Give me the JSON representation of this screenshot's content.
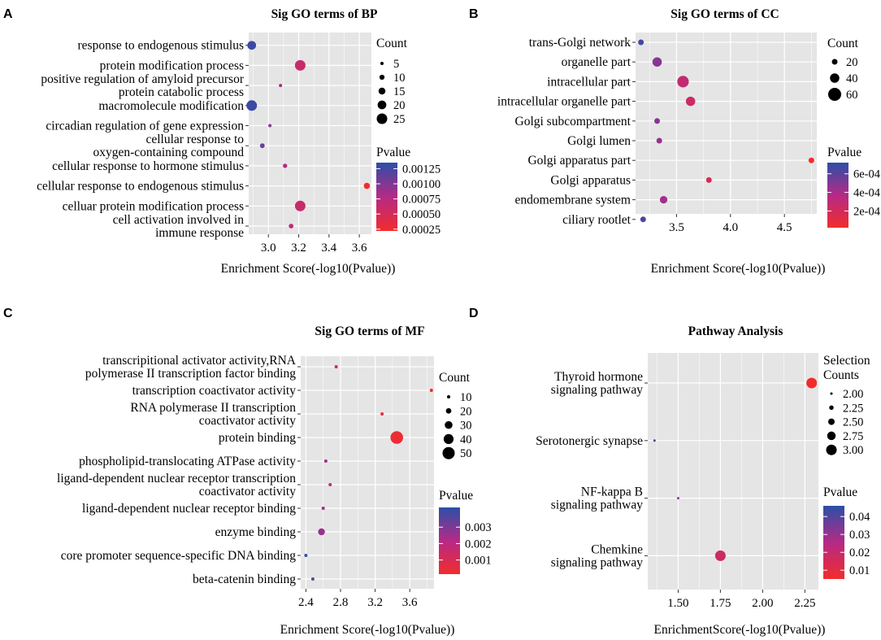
{
  "colors": {
    "panel_bg": "#e5e5e5",
    "grid": "#ffffff",
    "low": "#f22c2c",
    "high": "#2b4fa8",
    "mid": "#b52a86"
  },
  "chart_data": [
    {
      "letter": "A",
      "type": "scatter",
      "title": "Sig GO terms of BP",
      "xlabel": "Enrichment Score(-log10(Pvalue))",
      "xlim": [
        2.87,
        3.68
      ],
      "xticks": [
        3.0,
        3.2,
        3.4,
        3.6
      ],
      "xtick_labels": [
        "3.0",
        "3.2",
        "3.4",
        "3.6"
      ],
      "categories": [
        [
          "response to endogenous stimulus"
        ],
        [
          "protein modification process"
        ],
        [
          "positive regulation of amyloid precursor",
          "protein catabolic process"
        ],
        [
          "macromolecule modification"
        ],
        [
          "circadian regulation of gene expression"
        ],
        [
          "cellular response to",
          "oxygen-containing compound"
        ],
        [
          "cellular response to hormone stimulus"
        ],
        [
          "cellular response to endogenous stimulus"
        ],
        [
          "celluar protein modification process"
        ],
        [
          "cell activation involved in",
          "immune response"
        ]
      ],
      "x": [
        2.89,
        3.21,
        3.08,
        2.89,
        3.01,
        2.96,
        3.11,
        3.65,
        3.21,
        3.15
      ],
      "count": [
        20,
        25,
        1,
        25,
        3,
        9,
        8,
        13,
        25,
        9
      ],
      "pvalue": [
        0.00128,
        0.00062,
        0.00083,
        0.00128,
        0.00098,
        0.0011,
        0.00078,
        0.00022,
        0.00062,
        0.0007
      ],
      "size_legend": {
        "title": "Count",
        "values": [
          5,
          10,
          15,
          20,
          25
        ],
        "labels": [
          "5",
          "10",
          "15",
          "20",
          "25"
        ]
      },
      "color_legend": {
        "title": "Pvalue",
        "range": [
          0.00022,
          0.00135
        ],
        "ticks": [
          0.00125,
          0.001,
          0.00075,
          0.0005,
          0.00025
        ],
        "labels": [
          "0.00125",
          "0.00100",
          "0.00075",
          "0.00050",
          "0.00025"
        ]
      }
    },
    {
      "letter": "B",
      "type": "scatter",
      "title": "Sig GO terms of CC",
      "xlabel": "Enrichment Score(-log10(Pvalue))",
      "xlim": [
        3.12,
        4.8
      ],
      "xticks": [
        3.5,
        4.0,
        4.5
      ],
      "xtick_labels": [
        "3.5",
        "4.0",
        "4.5"
      ],
      "categories": [
        [
          "trans-Golgi network"
        ],
        [
          "organelle part"
        ],
        [
          "intracellular part"
        ],
        [
          "intracellular organelle part"
        ],
        [
          "Golgi subcompartment"
        ],
        [
          "Golgi lumen"
        ],
        [
          "Golgi apparatus part"
        ],
        [
          "Golgi apparatus"
        ],
        [
          "endomembrane system"
        ],
        [
          "ciliary rootlet"
        ]
      ],
      "x": [
        3.17,
        3.32,
        3.56,
        3.63,
        3.32,
        3.34,
        4.75,
        3.8,
        3.38,
        3.19
      ],
      "count": [
        5,
        40,
        52,
        40,
        12,
        7,
        12,
        12,
        30,
        3
      ],
      "pvalue": [
        0.00066,
        0.00049,
        0.00029,
        0.00024,
        0.00049,
        0.00046,
        2e-05,
        0.00017,
        0.00042,
        0.00064
      ],
      "size_legend": {
        "title": "Count",
        "values": [
          20,
          40,
          60
        ],
        "labels": [
          "20",
          "40",
          "60"
        ]
      },
      "color_legend": {
        "title": "Pvalue",
        "range": [
          2e-05,
          0.00072
        ],
        "ticks": [
          0.0006,
          0.0004,
          0.0002
        ],
        "labels": [
          "6e-04",
          "4e-04",
          "2e-04"
        ]
      }
    },
    {
      "letter": "C",
      "type": "scatter",
      "title": "Sig GO terms of MF",
      "xlabel": "Enrichment Score(-log10(Pvalue))",
      "xlim": [
        2.34,
        3.88
      ],
      "xticks": [
        2.4,
        2.8,
        3.2,
        3.6
      ],
      "xtick_labels": [
        "2.4",
        "2.8",
        "3.2",
        "3.6"
      ],
      "categories": [
        [
          "transcripitional activator activity,RNA",
          "polymerase II transcription factor binding"
        ],
        [
          "transcription coactivator activity"
        ],
        [
          "RNA polymerase II transcription",
          "coactivator activity"
        ],
        [
          "protein binding"
        ],
        [
          "phospholipid-translocating ATPase activity"
        ],
        [
          "ligand-dependent nuclear receptor transcription",
          "coactivator activity"
        ],
        [
          "ligand-dependent nuclear receptor binding"
        ],
        [
          "enzyme binding"
        ],
        [
          "core promoter sequence-specific DNA binding"
        ],
        [
          "beta-catenin binding"
        ]
      ],
      "x": [
        2.75,
        3.85,
        3.28,
        3.45,
        2.63,
        2.68,
        2.6,
        2.58,
        2.4,
        2.48
      ],
      "count": [
        5,
        6,
        6,
        52,
        5,
        6,
        3,
        26,
        3,
        4
      ],
      "pvalue": [
        0.0017,
        0.00014,
        0.0005,
        0.00035,
        0.0024,
        0.0021,
        0.0025,
        0.0026,
        0.0039,
        0.0033
      ],
      "size_legend": {
        "title": "Count",
        "values": [
          10,
          20,
          30,
          40,
          50
        ],
        "labels": [
          "10",
          "20",
          "30",
          "40",
          "50"
        ]
      },
      "color_legend": {
        "title": "Pvalue",
        "range": [
          0.00014,
          0.0042
        ],
        "ticks": [
          0.003,
          0.002,
          0.001
        ],
        "labels": [
          "0.003",
          "0.002",
          "0.001"
        ]
      }
    },
    {
      "letter": "D",
      "type": "scatter",
      "title": "Pathway Analysis",
      "xlabel": "EnrichmentScore(-log10(Pvalue))",
      "xlim": [
        1.32,
        2.33
      ],
      "xticks": [
        1.5,
        1.75,
        2.0,
        2.25
      ],
      "xtick_labels": [
        "1.50",
        "1.75",
        "2.00",
        "2.25"
      ],
      "categories": [
        [
          "Thyroid hormone",
          "signaling pathway"
        ],
        [
          "Serotonergic synapse"
        ],
        [
          "NF-kappa B",
          "signaling pathway"
        ],
        [
          "Chemkine",
          "signaling pathway"
        ]
      ],
      "x": [
        2.29,
        1.36,
        1.5,
        1.75
      ],
      "count": [
        3,
        2,
        2,
        3
      ],
      "pvalue": [
        0.0051,
        0.0436,
        0.0316,
        0.0178
      ],
      "size_legend": {
        "title": "Selection\nCounts",
        "values": [
          2.0,
          2.25,
          2.5,
          2.75,
          3.0
        ],
        "labels": [
          "2.00",
          "2.25",
          "2.50",
          "2.75",
          "3.00"
        ]
      },
      "color_legend": {
        "title": "Pvalue",
        "range": [
          0.0051,
          0.046
        ],
        "ticks": [
          0.04,
          0.03,
          0.02,
          0.01
        ],
        "labels": [
          "0.04",
          "0.03",
          "0.02",
          "0.01"
        ]
      }
    }
  ]
}
